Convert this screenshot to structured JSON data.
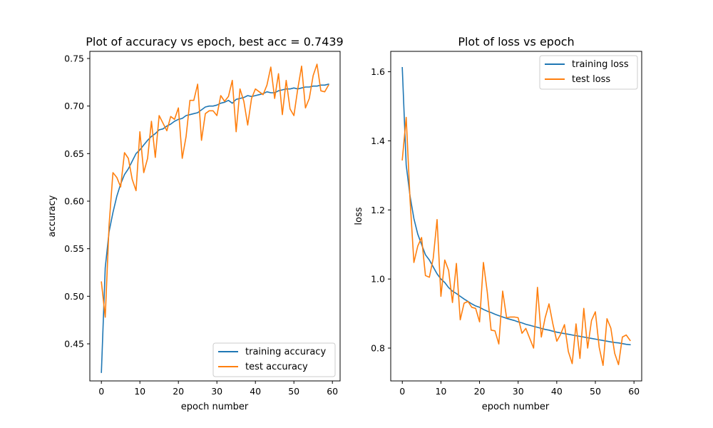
{
  "chart_data": [
    {
      "type": "line",
      "title": "Plot of accuracy vs epoch, best acc = 0.7439",
      "xlabel": "epoch number",
      "ylabel": "accuracy",
      "xlim": [
        -3,
        62
      ],
      "ylim": [
        0.411,
        0.7575
      ],
      "xticks": [
        0,
        10,
        20,
        30,
        40,
        50,
        60
      ],
      "yticks": [
        0.45,
        0.5,
        0.55,
        0.6,
        0.65,
        0.7,
        0.75
      ],
      "ytick_labels": [
        "0.45",
        "0.50",
        "0.55",
        "0.60",
        "0.65",
        "0.70",
        "0.75"
      ],
      "legend_position": "lower-right",
      "series": [
        {
          "name": "training accuracy",
          "color": "#1f77b4",
          "x": [
            0,
            1,
            2,
            3,
            4,
            5,
            6,
            7,
            8,
            9,
            10,
            11,
            12,
            13,
            14,
            15,
            16,
            17,
            18,
            19,
            20,
            21,
            22,
            23,
            24,
            25,
            26,
            27,
            28,
            29,
            30,
            31,
            32,
            33,
            34,
            35,
            36,
            37,
            38,
            39,
            40,
            41,
            42,
            43,
            44,
            45,
            46,
            47,
            48,
            49,
            50,
            51,
            52,
            53,
            54,
            55,
            56,
            57,
            58,
            59
          ],
          "y": [
            0.42,
            0.53,
            0.568,
            0.588,
            0.605,
            0.618,
            0.628,
            0.634,
            0.642,
            0.65,
            0.654,
            0.659,
            0.664,
            0.668,
            0.671,
            0.675,
            0.676,
            0.679,
            0.681,
            0.684,
            0.686,
            0.687,
            0.69,
            0.691,
            0.692,
            0.693,
            0.696,
            0.699,
            0.7,
            0.7,
            0.701,
            0.703,
            0.704,
            0.706,
            0.703,
            0.707,
            0.708,
            0.709,
            0.711,
            0.71,
            0.711,
            0.712,
            0.713,
            0.715,
            0.714,
            0.714,
            0.716,
            0.717,
            0.718,
            0.718,
            0.719,
            0.718,
            0.719,
            0.72,
            0.72,
            0.721,
            0.721,
            0.722,
            0.722,
            0.723
          ]
        },
        {
          "name": "test accuracy",
          "color": "#ff7f0e",
          "x": [
            0,
            1,
            2,
            3,
            4,
            5,
            6,
            7,
            8,
            9,
            10,
            11,
            12,
            13,
            14,
            15,
            16,
            17,
            18,
            19,
            20,
            21,
            22,
            23,
            24,
            25,
            26,
            27,
            28,
            29,
            30,
            31,
            32,
            33,
            34,
            35,
            36,
            37,
            38,
            39,
            40,
            41,
            42,
            43,
            44,
            45,
            46,
            47,
            48,
            49,
            50,
            51,
            52,
            53,
            54,
            55,
            56,
            57,
            58,
            59
          ],
          "y": [
            0.515,
            0.478,
            0.575,
            0.63,
            0.625,
            0.615,
            0.651,
            0.645,
            0.623,
            0.611,
            0.673,
            0.63,
            0.645,
            0.684,
            0.646,
            0.69,
            0.682,
            0.674,
            0.689,
            0.686,
            0.698,
            0.645,
            0.668,
            0.706,
            0.706,
            0.723,
            0.664,
            0.692,
            0.695,
            0.695,
            0.69,
            0.711,
            0.705,
            0.71,
            0.727,
            0.673,
            0.718,
            0.705,
            0.68,
            0.708,
            0.718,
            0.715,
            0.712,
            0.722,
            0.741,
            0.708,
            0.734,
            0.691,
            0.727,
            0.697,
            0.69,
            0.718,
            0.742,
            0.698,
            0.708,
            0.732,
            0.744,
            0.716,
            0.715,
            0.722
          ]
        }
      ]
    },
    {
      "type": "line",
      "title": "Plot of loss vs epoch",
      "xlabel": "epoch number",
      "ylabel": "loss",
      "xlim": [
        -3,
        62
      ],
      "ylim": [
        0.705,
        1.659
      ],
      "xticks": [
        0,
        10,
        20,
        30,
        40,
        50,
        60
      ],
      "yticks": [
        0.8,
        1.0,
        1.2,
        1.4,
        1.6
      ],
      "ytick_labels": [
        "0.8",
        "1.0",
        "1.2",
        "1.4",
        "1.6"
      ],
      "legend_position": "upper-right",
      "series": [
        {
          "name": "training loss",
          "color": "#1f77b4",
          "x": [
            0,
            1,
            2,
            3,
            4,
            5,
            6,
            7,
            8,
            9,
            10,
            11,
            12,
            13,
            14,
            15,
            16,
            17,
            18,
            19,
            20,
            21,
            22,
            23,
            24,
            25,
            26,
            27,
            28,
            29,
            30,
            31,
            32,
            33,
            34,
            35,
            36,
            37,
            38,
            39,
            40,
            41,
            42,
            43,
            44,
            45,
            46,
            47,
            48,
            49,
            50,
            51,
            52,
            53,
            54,
            55,
            56,
            57,
            58,
            59
          ],
          "y": [
            1.612,
            1.33,
            1.24,
            1.175,
            1.13,
            1.1,
            1.07,
            1.055,
            1.035,
            1.015,
            1.0,
            0.99,
            0.975,
            0.965,
            0.958,
            0.95,
            0.942,
            0.935,
            0.928,
            0.922,
            0.918,
            0.912,
            0.907,
            0.903,
            0.898,
            0.894,
            0.89,
            0.886,
            0.883,
            0.88,
            0.876,
            0.873,
            0.869,
            0.866,
            0.863,
            0.86,
            0.857,
            0.854,
            0.852,
            0.849,
            0.846,
            0.844,
            0.842,
            0.84,
            0.838,
            0.836,
            0.834,
            0.832,
            0.83,
            0.828,
            0.826,
            0.824,
            0.822,
            0.82,
            0.818,
            0.816,
            0.815,
            0.813,
            0.811,
            0.81
          ]
        },
        {
          "name": "test loss",
          "color": "#ff7f0e",
          "x": [
            0,
            1,
            2,
            3,
            4,
            5,
            6,
            7,
            8,
            9,
            10,
            11,
            12,
            13,
            14,
            15,
            16,
            17,
            18,
            19,
            20,
            21,
            22,
            23,
            24,
            25,
            26,
            27,
            28,
            29,
            30,
            31,
            32,
            33,
            34,
            35,
            36,
            37,
            38,
            39,
            40,
            41,
            42,
            43,
            44,
            45,
            46,
            47,
            48,
            49,
            50,
            51,
            52,
            53,
            54,
            55,
            56,
            57,
            58,
            59
          ],
          "y": [
            1.345,
            1.468,
            1.23,
            1.048,
            1.095,
            1.12,
            1.01,
            1.005,
            1.06,
            1.172,
            0.95,
            1.055,
            1.025,
            0.932,
            1.045,
            0.882,
            0.93,
            0.935,
            0.918,
            0.915,
            0.876,
            1.048,
            0.962,
            0.852,
            0.85,
            0.812,
            0.965,
            0.888,
            0.89,
            0.89,
            0.888,
            0.843,
            0.857,
            0.828,
            0.8,
            0.976,
            0.832,
            0.888,
            0.928,
            0.87,
            0.82,
            0.84,
            0.868,
            0.79,
            0.755,
            0.87,
            0.77,
            0.915,
            0.8,
            0.88,
            0.905,
            0.802,
            0.75,
            0.885,
            0.858,
            0.785,
            0.752,
            0.832,
            0.838,
            0.822
          ]
        }
      ]
    }
  ]
}
